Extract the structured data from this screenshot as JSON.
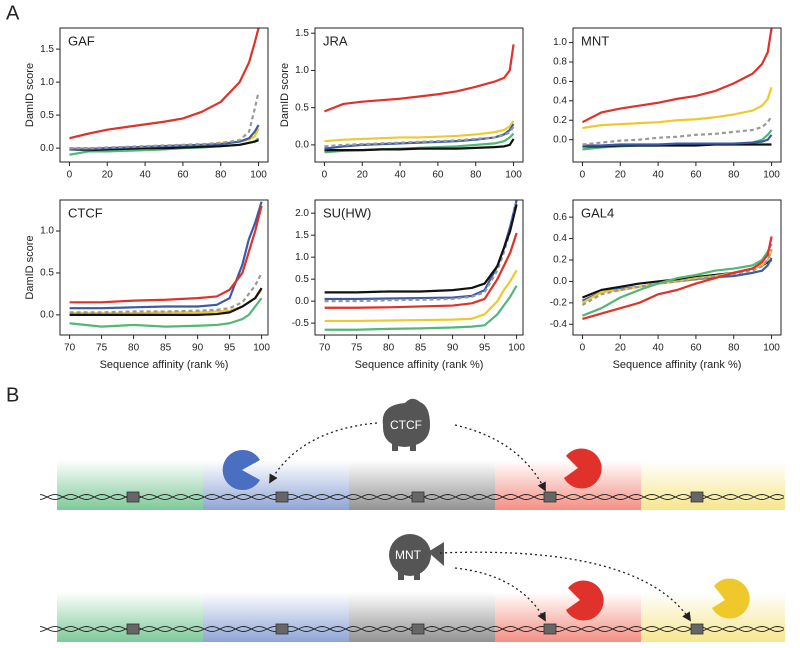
{
  "panel_labels": [
    "A",
    "B"
  ],
  "chart_data": [
    {
      "type": "line",
      "title": "GAF",
      "ylabel": "DamID score",
      "x": [
        0,
        10,
        20,
        30,
        40,
        50,
        60,
        70,
        80,
        90,
        95,
        98,
        100
      ],
      "xlim": [
        -5,
        105
      ],
      "xticks": [
        0,
        20,
        40,
        60,
        80,
        100
      ],
      "ylim": [
        -0.21,
        1.82
      ],
      "yticks": [
        {
          "value": 0,
          "label": "0.0"
        },
        {
          "value": 0.5,
          "label": "0.5"
        },
        {
          "value": 1,
          "label": "1.0"
        },
        {
          "value": 1.5,
          "label": "1.5"
        }
      ],
      "series": [
        {
          "color": "#e0312a",
          "values": [
            0.15,
            0.22,
            0.28,
            0.32,
            0.36,
            0.4,
            0.45,
            0.55,
            0.7,
            1.0,
            1.3,
            1.6,
            1.82
          ]
        },
        {
          "color": "#efc92c",
          "values": [
            0,
            0,
            0,
            0.01,
            0.02,
            0.03,
            0.04,
            0.05,
            0.07,
            0.1,
            0.13,
            0.18,
            0.3
          ]
        },
        {
          "color": "#52b777",
          "values": [
            -0.1,
            -0.05,
            -0.05,
            -0.04,
            -0.03,
            -0.02,
            0,
            0.01,
            0.03,
            0.05,
            0.08,
            0.1,
            0.15
          ]
        },
        {
          "color": "#111111",
          "values": [
            -0.02,
            -0.03,
            -0.02,
            -0.01,
            0,
            0,
            0.01,
            0.02,
            0.03,
            0.05,
            0.08,
            0.1,
            0.12
          ]
        },
        {
          "color": "#3b5ba8",
          "values": [
            -0.02,
            -0.02,
            0,
            0.01,
            0.02,
            0.03,
            0.04,
            0.05,
            0.06,
            0.1,
            0.15,
            0.25,
            0.35
          ]
        },
        {
          "color": "#999999",
          "dashed": true,
          "values": [
            0,
            0,
            0.01,
            0.02,
            0.03,
            0.04,
            0.05,
            0.06,
            0.08,
            0.12,
            0.25,
            0.6,
            0.85
          ]
        }
      ]
    },
    {
      "type": "line",
      "title": "JRA",
      "ylabel": "DamID score",
      "x": [
        0,
        10,
        20,
        30,
        40,
        50,
        60,
        70,
        80,
        90,
        95,
        98,
        100
      ],
      "xlim": [
        -5,
        105
      ],
      "xticks": [
        0,
        20,
        40,
        60,
        80,
        100
      ],
      "ylim": [
        -0.23,
        1.57
      ],
      "yticks": [
        {
          "value": 0,
          "label": "0.0"
        },
        {
          "value": 0.5,
          "label": "0.5"
        },
        {
          "value": 1,
          "label": "1.0"
        },
        {
          "value": 1.5,
          "label": "1.5"
        }
      ],
      "series": [
        {
          "color": "#e0312a",
          "values": [
            0.45,
            0.55,
            0.58,
            0.6,
            0.62,
            0.65,
            0.68,
            0.72,
            0.78,
            0.85,
            0.9,
            1.0,
            1.35
          ]
        },
        {
          "color": "#efc92c",
          "values": [
            0.05,
            0.07,
            0.08,
            0.09,
            0.1,
            0.1,
            0.11,
            0.12,
            0.14,
            0.17,
            0.2,
            0.25,
            0.32
          ]
        },
        {
          "color": "#52b777",
          "values": [
            -0.1,
            -0.08,
            -0.07,
            -0.06,
            -0.05,
            -0.04,
            -0.03,
            -0.02,
            0,
            0.02,
            0.05,
            0.1,
            0.15
          ]
        },
        {
          "color": "#111111",
          "values": [
            -0.07,
            -0.07,
            -0.07,
            -0.06,
            -0.06,
            -0.05,
            -0.05,
            -0.05,
            -0.04,
            -0.03,
            -0.02,
            0,
            0.08
          ]
        },
        {
          "color": "#3b5ba8",
          "values": [
            -0.05,
            -0.02,
            0,
            0.01,
            0.02,
            0.03,
            0.04,
            0.05,
            0.07,
            0.1,
            0.14,
            0.2,
            0.28
          ]
        },
        {
          "color": "#999999",
          "dashed": true,
          "values": [
            -0.02,
            0,
            0.01,
            0.02,
            0.03,
            0.04,
            0.05,
            0.06,
            0.08,
            0.1,
            0.13,
            0.17,
            0.24
          ]
        }
      ]
    },
    {
      "type": "line",
      "title": "MNT",
      "x": [
        0,
        10,
        20,
        30,
        40,
        50,
        60,
        70,
        80,
        90,
        95,
        98,
        100
      ],
      "xlim": [
        -5,
        105
      ],
      "xticks": [
        0,
        20,
        40,
        60,
        80,
        100
      ],
      "ylim": [
        -0.23,
        1.15
      ],
      "yticks": [
        {
          "value": 0,
          "label": "0.0"
        },
        {
          "value": 0.2,
          "label": "0.2"
        },
        {
          "value": 0.4,
          "label": "0.4"
        },
        {
          "value": 0.6,
          "label": "0.6"
        },
        {
          "value": 0.8,
          "label": "0.8"
        },
        {
          "value": 1,
          "label": "1.0"
        }
      ],
      "series": [
        {
          "color": "#e0312a",
          "values": [
            0.18,
            0.28,
            0.32,
            0.35,
            0.38,
            0.42,
            0.45,
            0.5,
            0.58,
            0.68,
            0.78,
            0.9,
            1.15
          ]
        },
        {
          "color": "#efc92c",
          "values": [
            0.12,
            0.15,
            0.16,
            0.17,
            0.18,
            0.2,
            0.21,
            0.23,
            0.26,
            0.3,
            0.35,
            0.42,
            0.54
          ]
        },
        {
          "color": "#52b777",
          "values": [
            -0.1,
            -0.08,
            -0.07,
            -0.06,
            -0.06,
            -0.05,
            -0.05,
            -0.04,
            -0.04,
            -0.03,
            0,
            0.05,
            0.1
          ]
        },
        {
          "color": "#111111",
          "values": [
            -0.07,
            -0.07,
            -0.06,
            -0.06,
            -0.06,
            -0.06,
            -0.06,
            -0.05,
            -0.05,
            -0.05,
            -0.05,
            -0.05,
            -0.05
          ]
        },
        {
          "color": "#3b5ba8",
          "values": [
            -0.06,
            -0.06,
            -0.05,
            -0.05,
            -0.05,
            -0.04,
            -0.04,
            -0.04,
            -0.04,
            -0.03,
            -0.02,
            0,
            0.05
          ]
        },
        {
          "color": "#999999",
          "dashed": true,
          "values": [
            -0.05,
            -0.03,
            -0.01,
            0,
            0.02,
            0.03,
            0.05,
            0.06,
            0.08,
            0.1,
            0.13,
            0.18,
            0.24
          ]
        }
      ]
    },
    {
      "type": "line",
      "title": "CTCF",
      "ylabel": "DamID score",
      "xlabel": "Sequence affinity (rank %)",
      "x": [
        70,
        75,
        80,
        85,
        90,
        93,
        95,
        97,
        98,
        99,
        100
      ],
      "xlim": [
        68.5,
        101
      ],
      "xticks": [
        70,
        75,
        80,
        85,
        90,
        95,
        100
      ],
      "ylim": [
        -0.24,
        1.37
      ],
      "yticks": [
        {
          "value": 0,
          "label": "0.0"
        },
        {
          "value": 0.5,
          "label": "0.5"
        },
        {
          "value": 1,
          "label": "1.0"
        }
      ],
      "series": [
        {
          "color": "#52b777",
          "values": [
            -0.1,
            -0.14,
            -0.12,
            -0.14,
            -0.13,
            -0.12,
            -0.1,
            -0.05,
            0,
            0.1,
            0.2
          ]
        },
        {
          "color": "#efc92c",
          "values": [
            0.02,
            0.02,
            0.02,
            0.03,
            0.03,
            0.04,
            0.05,
            0.1,
            0.15,
            0.2,
            0.3
          ]
        },
        {
          "color": "#111111",
          "values": [
            0,
            0,
            0,
            0,
            0,
            0.01,
            0.03,
            0.1,
            0.15,
            0.2,
            0.32
          ]
        },
        {
          "color": "#999999",
          "dashed": true,
          "values": [
            0.03,
            0.03,
            0.04,
            0.04,
            0.05,
            0.06,
            0.08,
            0.15,
            0.25,
            0.35,
            0.5
          ]
        },
        {
          "color": "#3b5ba8",
          "values": [
            0.08,
            0.08,
            0.09,
            0.1,
            0.1,
            0.12,
            0.2,
            0.6,
            0.9,
            1.1,
            1.35
          ]
        },
        {
          "color": "#e0312a",
          "values": [
            0.15,
            0.15,
            0.17,
            0.18,
            0.2,
            0.22,
            0.3,
            0.5,
            0.75,
            1.0,
            1.3
          ]
        }
      ]
    },
    {
      "type": "line",
      "title": "SU(HW)",
      "xlabel": "Sequence affinity (rank %)",
      "x": [
        70,
        75,
        80,
        85,
        90,
        93,
        95,
        97,
        98,
        99,
        100
      ],
      "xlim": [
        68.5,
        101
      ],
      "xticks": [
        70,
        75,
        80,
        85,
        90,
        95,
        100
      ],
      "ylim": [
        -0.77,
        2.3
      ],
      "yticks": [
        -0.5,
        {
          "value": 0,
          "label": "0.0"
        },
        0.5,
        {
          "value": 1,
          "label": "1.0"
        },
        1.5,
        {
          "value": 2,
          "label": "2.0"
        }
      ],
      "series": [
        {
          "color": "#52b777",
          "values": [
            -0.65,
            -0.65,
            -0.63,
            -0.62,
            -0.6,
            -0.58,
            -0.55,
            -0.3,
            -0.1,
            0.1,
            0.35
          ]
        },
        {
          "color": "#efc92c",
          "values": [
            -0.45,
            -0.45,
            -0.44,
            -0.43,
            -0.42,
            -0.4,
            -0.3,
            0,
            0.25,
            0.45,
            0.7
          ]
        },
        {
          "color": "#e0312a",
          "values": [
            -0.15,
            -0.15,
            -0.14,
            -0.12,
            -0.1,
            -0.05,
            0.05,
            0.5,
            0.8,
            1.1,
            1.55
          ]
        },
        {
          "color": "#3b5ba8",
          "values": [
            0.05,
            0.05,
            0.06,
            0.07,
            0.08,
            0.12,
            0.25,
            0.8,
            1.2,
            1.7,
            2.3
          ]
        },
        {
          "color": "#999999",
          "dashed": true,
          "values": [
            0,
            0,
            0.02,
            0.03,
            0.05,
            0.1,
            0.2,
            0.7,
            1.1,
            1.6,
            2.3
          ]
        },
        {
          "color": "#111111",
          "values": [
            0.2,
            0.2,
            0.22,
            0.22,
            0.25,
            0.3,
            0.4,
            0.8,
            1.2,
            1.6,
            2.2
          ]
        }
      ]
    },
    {
      "type": "line",
      "title": "GAL4",
      "xlabel": "Sequence affinity (rank %)",
      "x": [
        0,
        10,
        20,
        30,
        40,
        50,
        60,
        70,
        80,
        90,
        95,
        98,
        100
      ],
      "xlim": [
        -5,
        105
      ],
      "xticks": [
        0,
        20,
        40,
        60,
        80,
        100
      ],
      "ylim": [
        -0.5,
        0.76
      ],
      "yticks": [
        -0.4,
        -0.2,
        {
          "value": 0,
          "label": "0.0"
        },
        0.2,
        0.4,
        0.6
      ],
      "series": [
        {
          "color": "#111111",
          "values": [
            -0.15,
            -0.08,
            -0.05,
            -0.02,
            0,
            0.02,
            0.04,
            0.06,
            0.08,
            0.12,
            0.15,
            0.18,
            0.2
          ]
        },
        {
          "color": "#3b5ba8",
          "values": [
            -0.18,
            -0.1,
            -0.07,
            -0.05,
            -0.02,
            0,
            0.02,
            0.04,
            0.05,
            0.08,
            0.1,
            0.15,
            0.22
          ]
        },
        {
          "color": "#efc92c",
          "values": [
            -0.2,
            -0.1,
            -0.08,
            -0.05,
            -0.02,
            0,
            0.03,
            0.05,
            0.08,
            0.12,
            0.15,
            0.2,
            0.28
          ]
        },
        {
          "color": "#999999",
          "dashed": true,
          "values": [
            -0.22,
            -0.12,
            -0.08,
            -0.05,
            -0.02,
            0,
            0.02,
            0.05,
            0.07,
            0.1,
            0.14,
            0.2,
            0.3
          ]
        },
        {
          "color": "#52b777",
          "values": [
            -0.32,
            -0.25,
            -0.15,
            -0.08,
            -0.02,
            0.03,
            0.06,
            0.1,
            0.12,
            0.15,
            0.2,
            0.28,
            0.35
          ]
        },
        {
          "color": "#e0312a",
          "values": [
            -0.35,
            -0.3,
            -0.25,
            -0.2,
            -0.12,
            -0.08,
            -0.02,
            0.03,
            0.08,
            0.12,
            0.18,
            0.25,
            0.42
          ]
        }
      ]
    }
  ],
  "diagram": {
    "labels": [
      "CTCF",
      "MNT"
    ]
  }
}
